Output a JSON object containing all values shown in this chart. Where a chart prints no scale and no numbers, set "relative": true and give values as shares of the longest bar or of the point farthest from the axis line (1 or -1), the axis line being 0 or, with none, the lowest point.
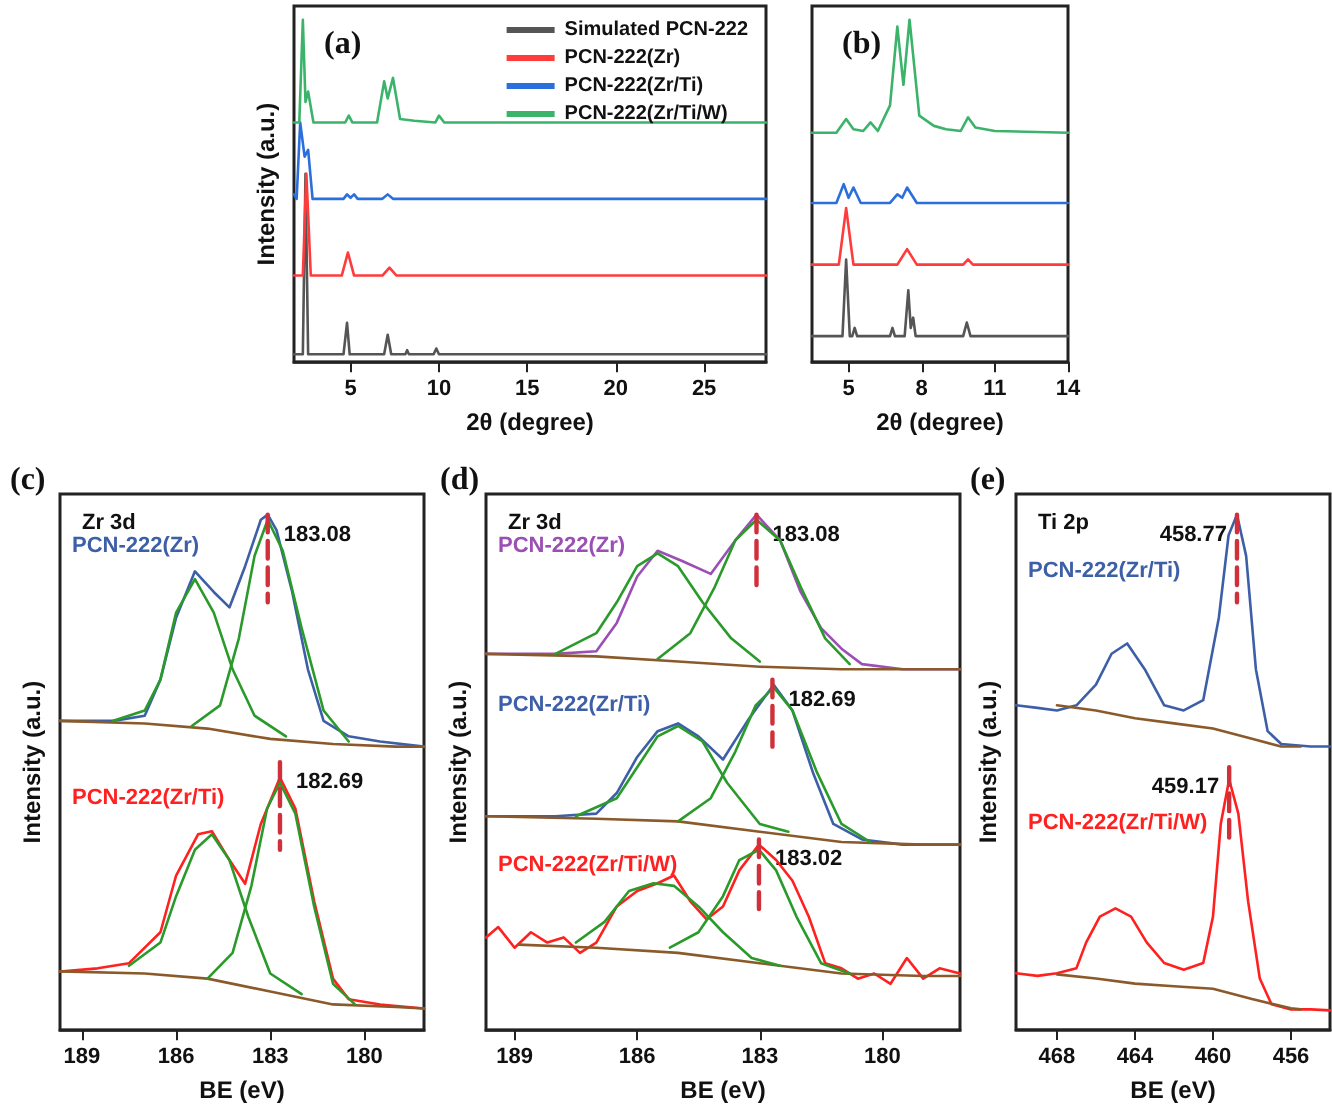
{
  "chart_data": [
    {
      "type": "line",
      "title": "(a)",
      "xlabel": "2θ (degree)",
      "ylabel": "Intensity (a.u.)",
      "relative": true,
      "xlim": [
        1.8,
        28.5
      ],
      "xticks": [
        5,
        10,
        15,
        20,
        25
      ],
      "legend": "top right",
      "marker": "none",
      "series": [
        {
          "name": "Simulated PCN-222",
          "color": "#555555",
          "x": [
            1.8,
            2.3,
            2.45,
            2.6,
            4.6,
            4.8,
            4.95,
            6.9,
            7.1,
            7.3,
            8.1,
            8.2,
            8.3,
            9.7,
            9.85,
            10,
            28.5
          ],
          "values": [
            0.023,
            0.023,
            0.55,
            0.023,
            0.023,
            0.115,
            0.023,
            0.023,
            0.08,
            0.023,
            0.023,
            0.035,
            0.023,
            0.023,
            0.04,
            0.023,
            0.023
          ]
        },
        {
          "name": "PCN-222(Zr)",
          "color": "#ff3b3b",
          "x": [
            1.8,
            2.3,
            2.5,
            2.75,
            4.5,
            4.85,
            5.2,
            6.8,
            7.2,
            7.6,
            28.5
          ],
          "values": [
            0.253,
            0.253,
            0.55,
            0.253,
            0.253,
            0.32,
            0.253,
            0.253,
            0.276,
            0.253,
            0.253
          ]
        },
        {
          "name": "PCN-222(Zr/Ti)",
          "color": "#2a6fdb",
          "x": [
            1.8,
            1.95,
            2.15,
            2.4,
            2.6,
            2.85,
            4.6,
            4.8,
            5.0,
            5.2,
            5.4,
            6.8,
            7.1,
            7.4,
            28.5
          ],
          "values": [
            0.49,
            0.477,
            0.7,
            0.6,
            0.62,
            0.477,
            0.477,
            0.49,
            0.48,
            0.49,
            0.477,
            0.477,
            0.49,
            0.477,
            0.477
          ]
        },
        {
          "name": "PCN-222(Zr/Ti/W)",
          "color": "#3cb36a",
          "x": [
            1.8,
            2.1,
            2.3,
            2.45,
            2.6,
            2.9,
            4.7,
            4.9,
            5.1,
            6.5,
            6.9,
            7.1,
            7.4,
            7.8,
            8.6,
            9.8,
            10.0,
            10.3,
            28.5
          ],
          "values": [
            0.7,
            0.7,
            1.0,
            0.76,
            0.79,
            0.7,
            0.7,
            0.72,
            0.7,
            0.7,
            0.82,
            0.77,
            0.83,
            0.71,
            0.705,
            0.7,
            0.72,
            0.7,
            0.7
          ]
        }
      ]
    },
    {
      "type": "line",
      "title": "(b)",
      "xlabel": "2θ (degree)",
      "relative": true,
      "xlim": [
        3.5,
        14
      ],
      "xticks": [
        5,
        8,
        11,
        14
      ],
      "marker": "none",
      "series": [
        {
          "color": "#555555",
          "x": [
            3.5,
            4.75,
            4.9,
            5.05,
            5.15,
            5.25,
            5.35,
            6.7,
            6.8,
            6.9,
            7.3,
            7.45,
            7.55,
            7.65,
            7.75,
            9.7,
            9.85,
            10.0,
            14
          ],
          "values": [
            0.076,
            0.076,
            0.3,
            0.076,
            0.076,
            0.1,
            0.076,
            0.076,
            0.1,
            0.076,
            0.076,
            0.21,
            0.1,
            0.13,
            0.076,
            0.076,
            0.116,
            0.076,
            0.076
          ]
        },
        {
          "color": "#ff3b3b",
          "x": [
            3.5,
            4.6,
            4.9,
            5.2,
            7.0,
            7.4,
            7.8,
            9.7,
            9.9,
            10.1,
            14
          ],
          "values": [
            0.285,
            0.285,
            0.45,
            0.285,
            0.285,
            0.33,
            0.285,
            0.285,
            0.3,
            0.285,
            0.285
          ]
        },
        {
          "color": "#2a6fdb",
          "x": [
            3.5,
            4.5,
            4.8,
            5.0,
            5.2,
            5.5,
            6.7,
            7.0,
            7.2,
            7.4,
            7.8,
            14
          ],
          "values": [
            0.465,
            0.465,
            0.52,
            0.48,
            0.51,
            0.465,
            0.465,
            0.49,
            0.48,
            0.51,
            0.465,
            0.465
          ]
        },
        {
          "color": "#3cb36a",
          "x": [
            3.5,
            4.5,
            4.9,
            5.2,
            5.6,
            5.9,
            6.2,
            6.7,
            7.0,
            7.25,
            7.5,
            7.9,
            8.5,
            9.0,
            9.6,
            9.9,
            10.2,
            11,
            14
          ],
          "values": [
            0.67,
            0.67,
            0.71,
            0.68,
            0.675,
            0.7,
            0.675,
            0.75,
            0.98,
            0.81,
            1.0,
            0.72,
            0.69,
            0.68,
            0.675,
            0.715,
            0.685,
            0.675,
            0.67
          ]
        }
      ]
    },
    {
      "type": "line",
      "title": "(c)",
      "subtitle": "Zr 3d",
      "xlabel": "BE (eV)",
      "ylabel": "Intensity (a.u.)",
      "relative": true,
      "xlim": [
        189.7,
        178.1
      ],
      "xticks": [
        189,
        186,
        183,
        180
      ],
      "marker": "none",
      "series": [
        {
          "name": "PCN-222(Zr)",
          "color": "#3d5fa8",
          "x": [
            189.7,
            188,
            187,
            186.5,
            186,
            185.4,
            184.8,
            184.3,
            183.8,
            183.3,
            183.08,
            182.8,
            182.3,
            181.8,
            181.3,
            180.5,
            179.5,
            178.1
          ],
          "values": [
            0.6,
            0.6,
            0.61,
            0.68,
            0.8,
            0.89,
            0.85,
            0.82,
            0.9,
            0.99,
            1.0,
            0.97,
            0.85,
            0.7,
            0.6,
            0.57,
            0.56,
            0.55
          ]
        },
        {
          "color": "#8b5a2b",
          "x": [
            189.7,
            187,
            185,
            183,
            181,
            179,
            178.1
          ],
          "values": [
            0.6,
            0.595,
            0.585,
            0.565,
            0.555,
            0.55,
            0.55
          ]
        },
        {
          "color": "#2a9a2a",
          "x": [
            188,
            187,
            186.5,
            186,
            185.4,
            184.8,
            184.2,
            183.5,
            182.5
          ],
          "values": [
            0.6,
            0.62,
            0.68,
            0.81,
            0.875,
            0.81,
            0.7,
            0.61,
            0.57
          ]
        },
        {
          "color": "#2a9a2a",
          "x": [
            185.5,
            184.6,
            184.0,
            183.5,
            183.08,
            182.6,
            182,
            181.3,
            180.5
          ],
          "values": [
            0.59,
            0.63,
            0.76,
            0.92,
            0.99,
            0.93,
            0.78,
            0.62,
            0.56
          ]
        },
        {
          "color": "#d0303a",
          "line_style": "dashed",
          "x": [
            183.08,
            183.08
          ],
          "values": [
            1.0,
            0.83
          ]
        },
        {
          "name": "PCN-222(Zr/Ti)",
          "color": "#ff2020",
          "x": [
            189.7,
            188.5,
            187.5,
            186.5,
            186,
            185.3,
            184.86,
            184.3,
            183.8,
            183.3,
            182.69,
            182.2,
            181.6,
            181,
            180.5,
            179.5,
            178.1
          ],
          "values": [
            0.114,
            0.12,
            0.13,
            0.19,
            0.3,
            0.38,
            0.386,
            0.33,
            0.284,
            0.4,
            0.49,
            0.43,
            0.25,
            0.1,
            0.06,
            0.05,
            0.042
          ]
        },
        {
          "color": "#8b5a2b",
          "x": [
            189.7,
            187,
            185,
            183,
            181,
            179,
            178.1
          ],
          "values": [
            0.114,
            0.11,
            0.1,
            0.075,
            0.05,
            0.045,
            0.042
          ]
        },
        {
          "color": "#2a9a2a",
          "x": [
            187.5,
            186.5,
            186,
            185.4,
            184.86,
            184.3,
            183.7,
            183,
            182
          ],
          "values": [
            0.125,
            0.17,
            0.26,
            0.35,
            0.38,
            0.33,
            0.22,
            0.11,
            0.07
          ]
        },
        {
          "color": "#2a9a2a",
          "x": [
            185,
            184.2,
            183.6,
            183.1,
            182.69,
            182.2,
            181.6,
            181,
            180.3
          ],
          "values": [
            0.1,
            0.15,
            0.28,
            0.43,
            0.48,
            0.42,
            0.24,
            0.09,
            0.05
          ]
        },
        {
          "color": "#d0303a",
          "line_style": "dashed",
          "x": [
            182.69,
            182.69
          ],
          "values": [
            0.52,
            0.35
          ]
        }
      ],
      "annotations": [
        {
          "text": "183.08",
          "x": 183.08,
          "y": 1.0
        },
        {
          "text": "182.69",
          "x": 182.69,
          "y": 0.52
        }
      ]
    },
    {
      "type": "line",
      "title": "(d)",
      "subtitle": "Zr 3d",
      "xlabel": "BE (eV)",
      "ylabel": "Intensity (a.u.)",
      "relative": true,
      "xlim": [
        189.7,
        178.1
      ],
      "xticks": [
        189,
        186,
        183,
        180
      ],
      "marker": "none",
      "series": [
        {
          "name": "PCN-222(Zr)",
          "color": "#9b4fb5",
          "x": [
            189.7,
            188,
            187,
            186.5,
            186,
            185.5,
            184.9,
            184.2,
            183.6,
            183.08,
            182.5,
            182,
            181.5,
            181,
            180.5,
            179.5,
            178.1
          ],
          "values": [
            0.73,
            0.73,
            0.735,
            0.79,
            0.88,
            0.93,
            0.91,
            0.885,
            0.95,
            1.0,
            0.95,
            0.85,
            0.78,
            0.74,
            0.71,
            0.7,
            0.7
          ]
        },
        {
          "color": "#8b5a2b",
          "x": [
            189.7,
            187,
            185,
            183,
            181,
            179,
            178.1
          ],
          "values": [
            0.73,
            0.725,
            0.715,
            0.705,
            0.7,
            0.7,
            0.7
          ]
        },
        {
          "color": "#2a9a2a",
          "x": [
            188,
            187,
            186.5,
            186,
            185.5,
            185,
            184.4,
            183.7,
            183
          ],
          "values": [
            0.73,
            0.77,
            0.83,
            0.9,
            0.925,
            0.9,
            0.83,
            0.76,
            0.715
          ]
        },
        {
          "color": "#2a9a2a",
          "x": [
            185.5,
            184.7,
            184.1,
            183.6,
            183.08,
            182.5,
            182,
            181.4,
            180.8
          ],
          "values": [
            0.72,
            0.77,
            0.86,
            0.95,
            0.99,
            0.95,
            0.86,
            0.76,
            0.71
          ]
        },
        {
          "color": "#d0303a",
          "line_style": "dashed",
          "x": [
            183.08,
            183.08
          ],
          "values": [
            1.0,
            0.855
          ]
        },
        {
          "name": "PCN-222(Zr/Ti)",
          "color": "#3d5fa8",
          "x": [
            189.7,
            188,
            187,
            186.5,
            186,
            185.5,
            185.0,
            184.5,
            183.9,
            183.3,
            182.66,
            182.2,
            181.7,
            181.2,
            180.5,
            179.5,
            178.1
          ],
          "values": [
            0.415,
            0.415,
            0.42,
            0.46,
            0.53,
            0.58,
            0.595,
            0.57,
            0.525,
            0.6,
            0.67,
            0.62,
            0.5,
            0.4,
            0.37,
            0.36,
            0.36
          ]
        },
        {
          "color": "#8b5a2b",
          "x": [
            189.7,
            187,
            185,
            183,
            181,
            179,
            178.1
          ],
          "values": [
            0.415,
            0.41,
            0.405,
            0.385,
            0.365,
            0.36,
            0.36
          ]
        },
        {
          "color": "#2a9a2a",
          "x": [
            187.5,
            186.5,
            186,
            185.5,
            185.0,
            184.4,
            183.8,
            183,
            182.3
          ],
          "values": [
            0.415,
            0.45,
            0.51,
            0.57,
            0.59,
            0.56,
            0.48,
            0.4,
            0.385
          ]
        },
        {
          "color": "#2a9a2a",
          "x": [
            185,
            184.2,
            183.6,
            183.1,
            182.66,
            182.2,
            181.6,
            181,
            180.3
          ],
          "values": [
            0.405,
            0.45,
            0.54,
            0.63,
            0.665,
            0.62,
            0.5,
            0.4,
            0.365
          ]
        },
        {
          "color": "#d0303a",
          "line_style": "dashed",
          "x": [
            182.69,
            182.69
          ],
          "values": [
            0.68,
            0.55
          ]
        },
        {
          "name": "PCN-222(Zr/Ti/W)",
          "color": "#ff2020",
          "x": [
            189.7,
            189.4,
            189,
            188.6,
            188.2,
            187.8,
            187.4,
            187,
            186.5,
            186,
            185.5,
            185.1,
            184.7,
            184.3,
            183.9,
            183.5,
            183.02,
            182.6,
            182.2,
            181.8,
            181.4,
            181,
            180.6,
            180.2,
            179.8,
            179.4,
            179,
            178.6,
            178.1
          ],
          "values": [
            0.18,
            0.2,
            0.16,
            0.19,
            0.17,
            0.18,
            0.15,
            0.17,
            0.24,
            0.27,
            0.285,
            0.3,
            0.25,
            0.215,
            0.24,
            0.31,
            0.36,
            0.33,
            0.29,
            0.22,
            0.13,
            0.12,
            0.1,
            0.11,
            0.09,
            0.14,
            0.1,
            0.12,
            0.11
          ]
        },
        {
          "color": "#8b5a2b",
          "x": [
            188.9,
            187,
            185,
            183,
            181,
            179,
            178.1
          ],
          "values": [
            0.166,
            0.16,
            0.15,
            0.13,
            0.11,
            0.105,
            0.105
          ]
        },
        {
          "color": "#2a9a2a",
          "x": [
            187.5,
            186.8,
            186.2,
            185.6,
            185.1,
            184.5,
            183.9,
            183.2,
            182.5
          ],
          "values": [
            0.17,
            0.21,
            0.27,
            0.285,
            0.28,
            0.24,
            0.19,
            0.14,
            0.125
          ]
        },
        {
          "color": "#2a9a2a",
          "x": [
            185.2,
            184.5,
            183.9,
            183.5,
            183.02,
            182.6,
            182.1,
            181.5,
            180.8
          ],
          "values": [
            0.16,
            0.19,
            0.26,
            0.33,
            0.35,
            0.31,
            0.22,
            0.13,
            0.11
          ]
        },
        {
          "color": "#d0303a",
          "line_style": "dashed",
          "x": [
            183.02,
            183.02
          ],
          "values": [
            0.37,
            0.235
          ]
        }
      ],
      "annotations": [
        {
          "text": "183.08",
          "x": 183.08,
          "y": 1.0
        },
        {
          "text": "182.69",
          "x": 182.69,
          "y": 0.68
        },
        {
          "text": "183.02",
          "x": 183.02,
          "y": 0.37
        }
      ]
    },
    {
      "type": "line",
      "title": "(e)",
      "subtitle": "Ti 2p",
      "xlabel": "BE (eV)",
      "ylabel": "Intensity (a.u.)",
      "relative": true,
      "xlim": [
        470.1,
        454
      ],
      "xticks": [
        468,
        464,
        460,
        456
      ],
      "marker": "none",
      "series": [
        {
          "name": "PCN-222(Zr/Ti)",
          "color": "#3d5fa8",
          "x": [
            470.1,
            469,
            468,
            467,
            466,
            465.2,
            464.4,
            463.5,
            462.5,
            461.5,
            460.5,
            459.7,
            459.2,
            458.77,
            458.3,
            457.8,
            457.2,
            456.5,
            455,
            454
          ],
          "values": [
            0.63,
            0.625,
            0.62,
            0.63,
            0.67,
            0.73,
            0.75,
            0.7,
            0.63,
            0.62,
            0.64,
            0.8,
            0.96,
            1.0,
            0.92,
            0.7,
            0.58,
            0.555,
            0.55,
            0.55
          ]
        },
        {
          "color": "#8b5a2b",
          "x": [
            468,
            466,
            464,
            462,
            460,
            458,
            456.5,
            455.5
          ],
          "values": [
            0.63,
            0.62,
            0.605,
            0.595,
            0.585,
            0.565,
            0.55,
            0.55
          ]
        },
        {
          "color": "#d0303a",
          "line_style": "dashed",
          "x": [
            458.77,
            458.77
          ],
          "values": [
            1.0,
            0.83
          ]
        },
        {
          "name": "PCN-222(Zr/Ti/W)",
          "color": "#ff2020",
          "x": [
            470.1,
            469,
            468,
            467,
            466.5,
            465.8,
            465,
            464.2,
            463.4,
            462.5,
            461.5,
            460.5,
            460,
            459.6,
            459.17,
            458.7,
            458.2,
            457.6,
            457,
            456,
            455,
            454
          ],
          "values": [
            0.11,
            0.105,
            0.11,
            0.12,
            0.17,
            0.22,
            0.236,
            0.22,
            0.17,
            0.13,
            0.117,
            0.13,
            0.22,
            0.4,
            0.486,
            0.42,
            0.25,
            0.1,
            0.05,
            0.04,
            0.04,
            0.038
          ]
        },
        {
          "color": "#8b5a2b",
          "x": [
            468,
            466,
            464,
            462,
            460,
            458,
            456,
            455.5
          ],
          "values": [
            0.108,
            0.1,
            0.09,
            0.085,
            0.08,
            0.06,
            0.042,
            0.04
          ]
        },
        {
          "color": "#d0303a",
          "line_style": "dashed",
          "x": [
            459.17,
            459.17
          ],
          "values": [
            0.51,
            0.36
          ]
        }
      ],
      "annotations": [
        {
          "text": "458.77",
          "x": 458.77,
          "y": 1.0
        },
        {
          "text": "459.17",
          "x": 459.17,
          "y": 0.51
        }
      ]
    }
  ]
}
